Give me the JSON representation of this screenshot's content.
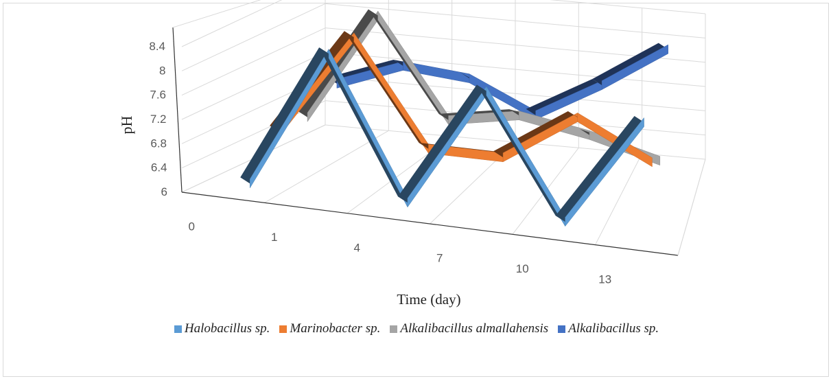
{
  "chart_data": {
    "type": "line-3d",
    "xlabel": "Time (day)",
    "ylabel": "pH",
    "categories": [
      "0",
      "1",
      "4",
      "7",
      "10",
      "13"
    ],
    "y_ticks": [
      "6",
      "6.4",
      "6.8",
      "7.2",
      "7.6",
      "8",
      "8.4"
    ],
    "ylim": [
      6,
      8.4
    ],
    "legend_position": "bottom",
    "series": [
      {
        "name": "Halobacillus sp.",
        "color": "#5b9bd5",
        "values": [
          6.0,
          8.3,
          6.0,
          8.0,
          6.0,
          7.8
        ]
      },
      {
        "name": "Marinobacter sp.",
        "color": "#ed7d31",
        "values": [
          6.6,
          8.3,
          6.6,
          6.6,
          7.4,
          6.8
        ]
      },
      {
        "name": "Alkalibacillus almallahensis",
        "color": "#a5a5a5",
        "values": [
          6.6,
          8.4,
          6.8,
          7.0,
          6.8,
          6.5
        ]
      },
      {
        "name": "Alkalibacillus sp.",
        "color": "#4472c4",
        "values": [
          6.9,
          7.3,
          7.2,
          6.7,
          7.3,
          8.0
        ]
      }
    ]
  }
}
